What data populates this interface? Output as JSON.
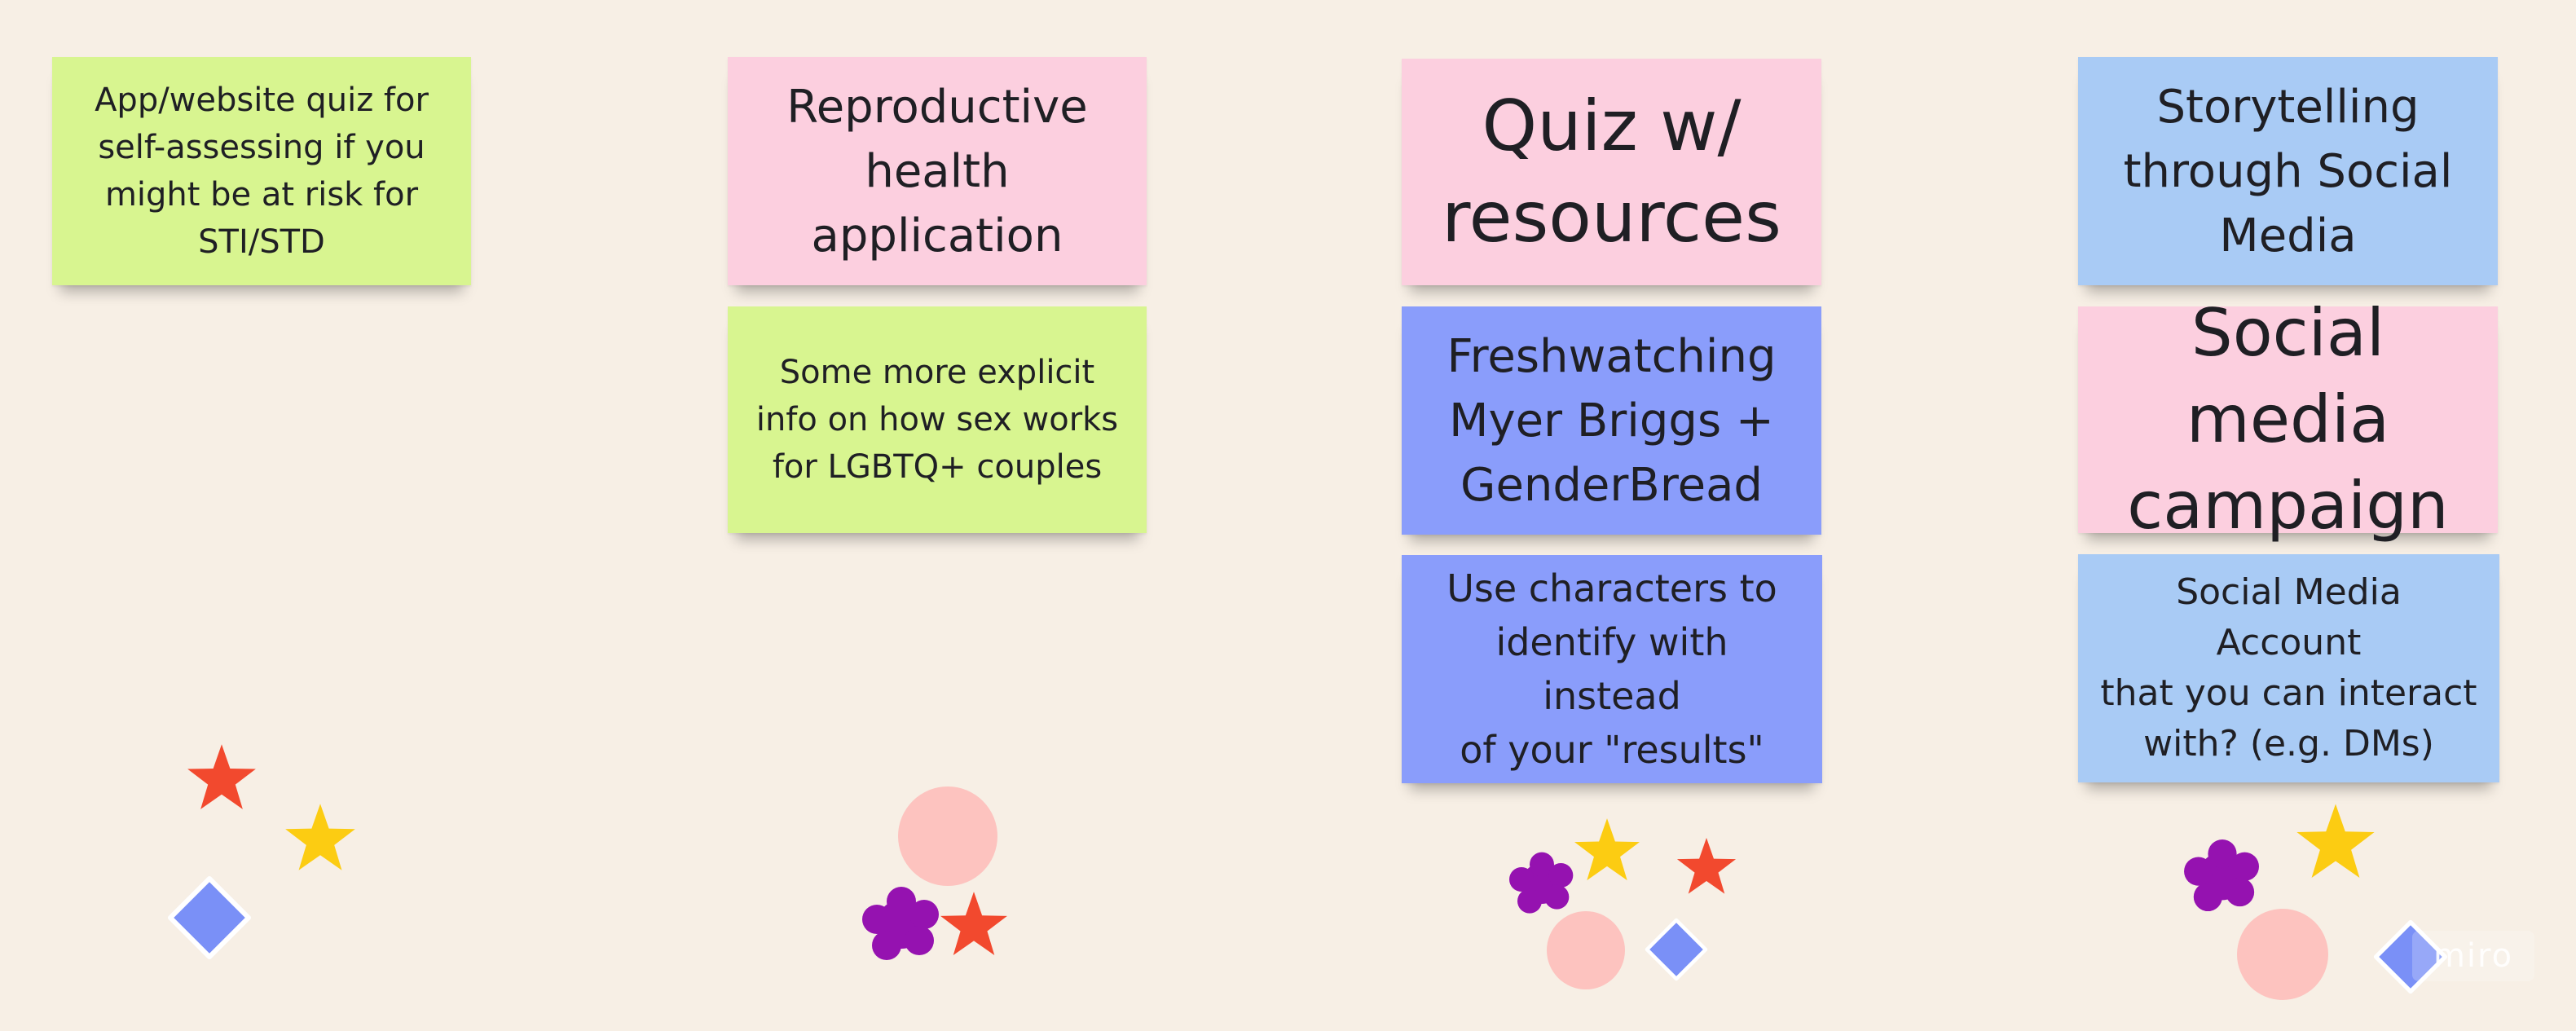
{
  "board": {
    "background_color": "#f7efe5",
    "watermark": "miro"
  },
  "columns": [
    {
      "stickies": [
        {
          "text": "App/website quiz for\nself-assessing if you\nmight be at risk for\nSTI/STD",
          "color": "#d8f590"
        }
      ],
      "shapes": [
        "red-star",
        "yellow-star",
        "blue-diamond"
      ]
    },
    {
      "stickies": [
        {
          "text": "Reproductive\nhealth\napplication",
          "color": "#fccfdf"
        },
        {
          "text": "Some more explicit\ninfo on how sex works\nfor LGBTQ+ couples",
          "color": "#d8f590"
        }
      ],
      "shapes": [
        "pink-circle",
        "purple-blob",
        "red-star"
      ]
    },
    {
      "stickies": [
        {
          "text": "Quiz w/\nresources",
          "color": "#fccfdf"
        },
        {
          "text": "Freshwatching\nMyer Briggs +\nGenderBread",
          "color": "#8a9dfb"
        },
        {
          "text": "Use characters to\nidentify with instead\nof your \"results\"",
          "color": "#8a9dfb"
        }
      ],
      "shapes": [
        "purple-blob",
        "yellow-star",
        "red-star",
        "pink-circle",
        "blue-diamond"
      ]
    },
    {
      "stickies": [
        {
          "text": "Storytelling\nthrough Social\nMedia",
          "color": "#a9cbf5"
        },
        {
          "text": "Social media\ncampaign",
          "color": "#fccfdf"
        },
        {
          "text": "Social Media Account\nthat you can interact\nwith? (e.g. DMs)",
          "color": "#a9cbf5"
        }
      ],
      "shapes": [
        "purple-blob",
        "yellow-star",
        "pink-circle",
        "blue-diamond"
      ]
    }
  ],
  "shape_colors": {
    "red": "#f2492e",
    "yellow": "#fccc12",
    "blue": "#7a90f7",
    "pink": "#fdc3bf",
    "purple": "#9512b0"
  }
}
